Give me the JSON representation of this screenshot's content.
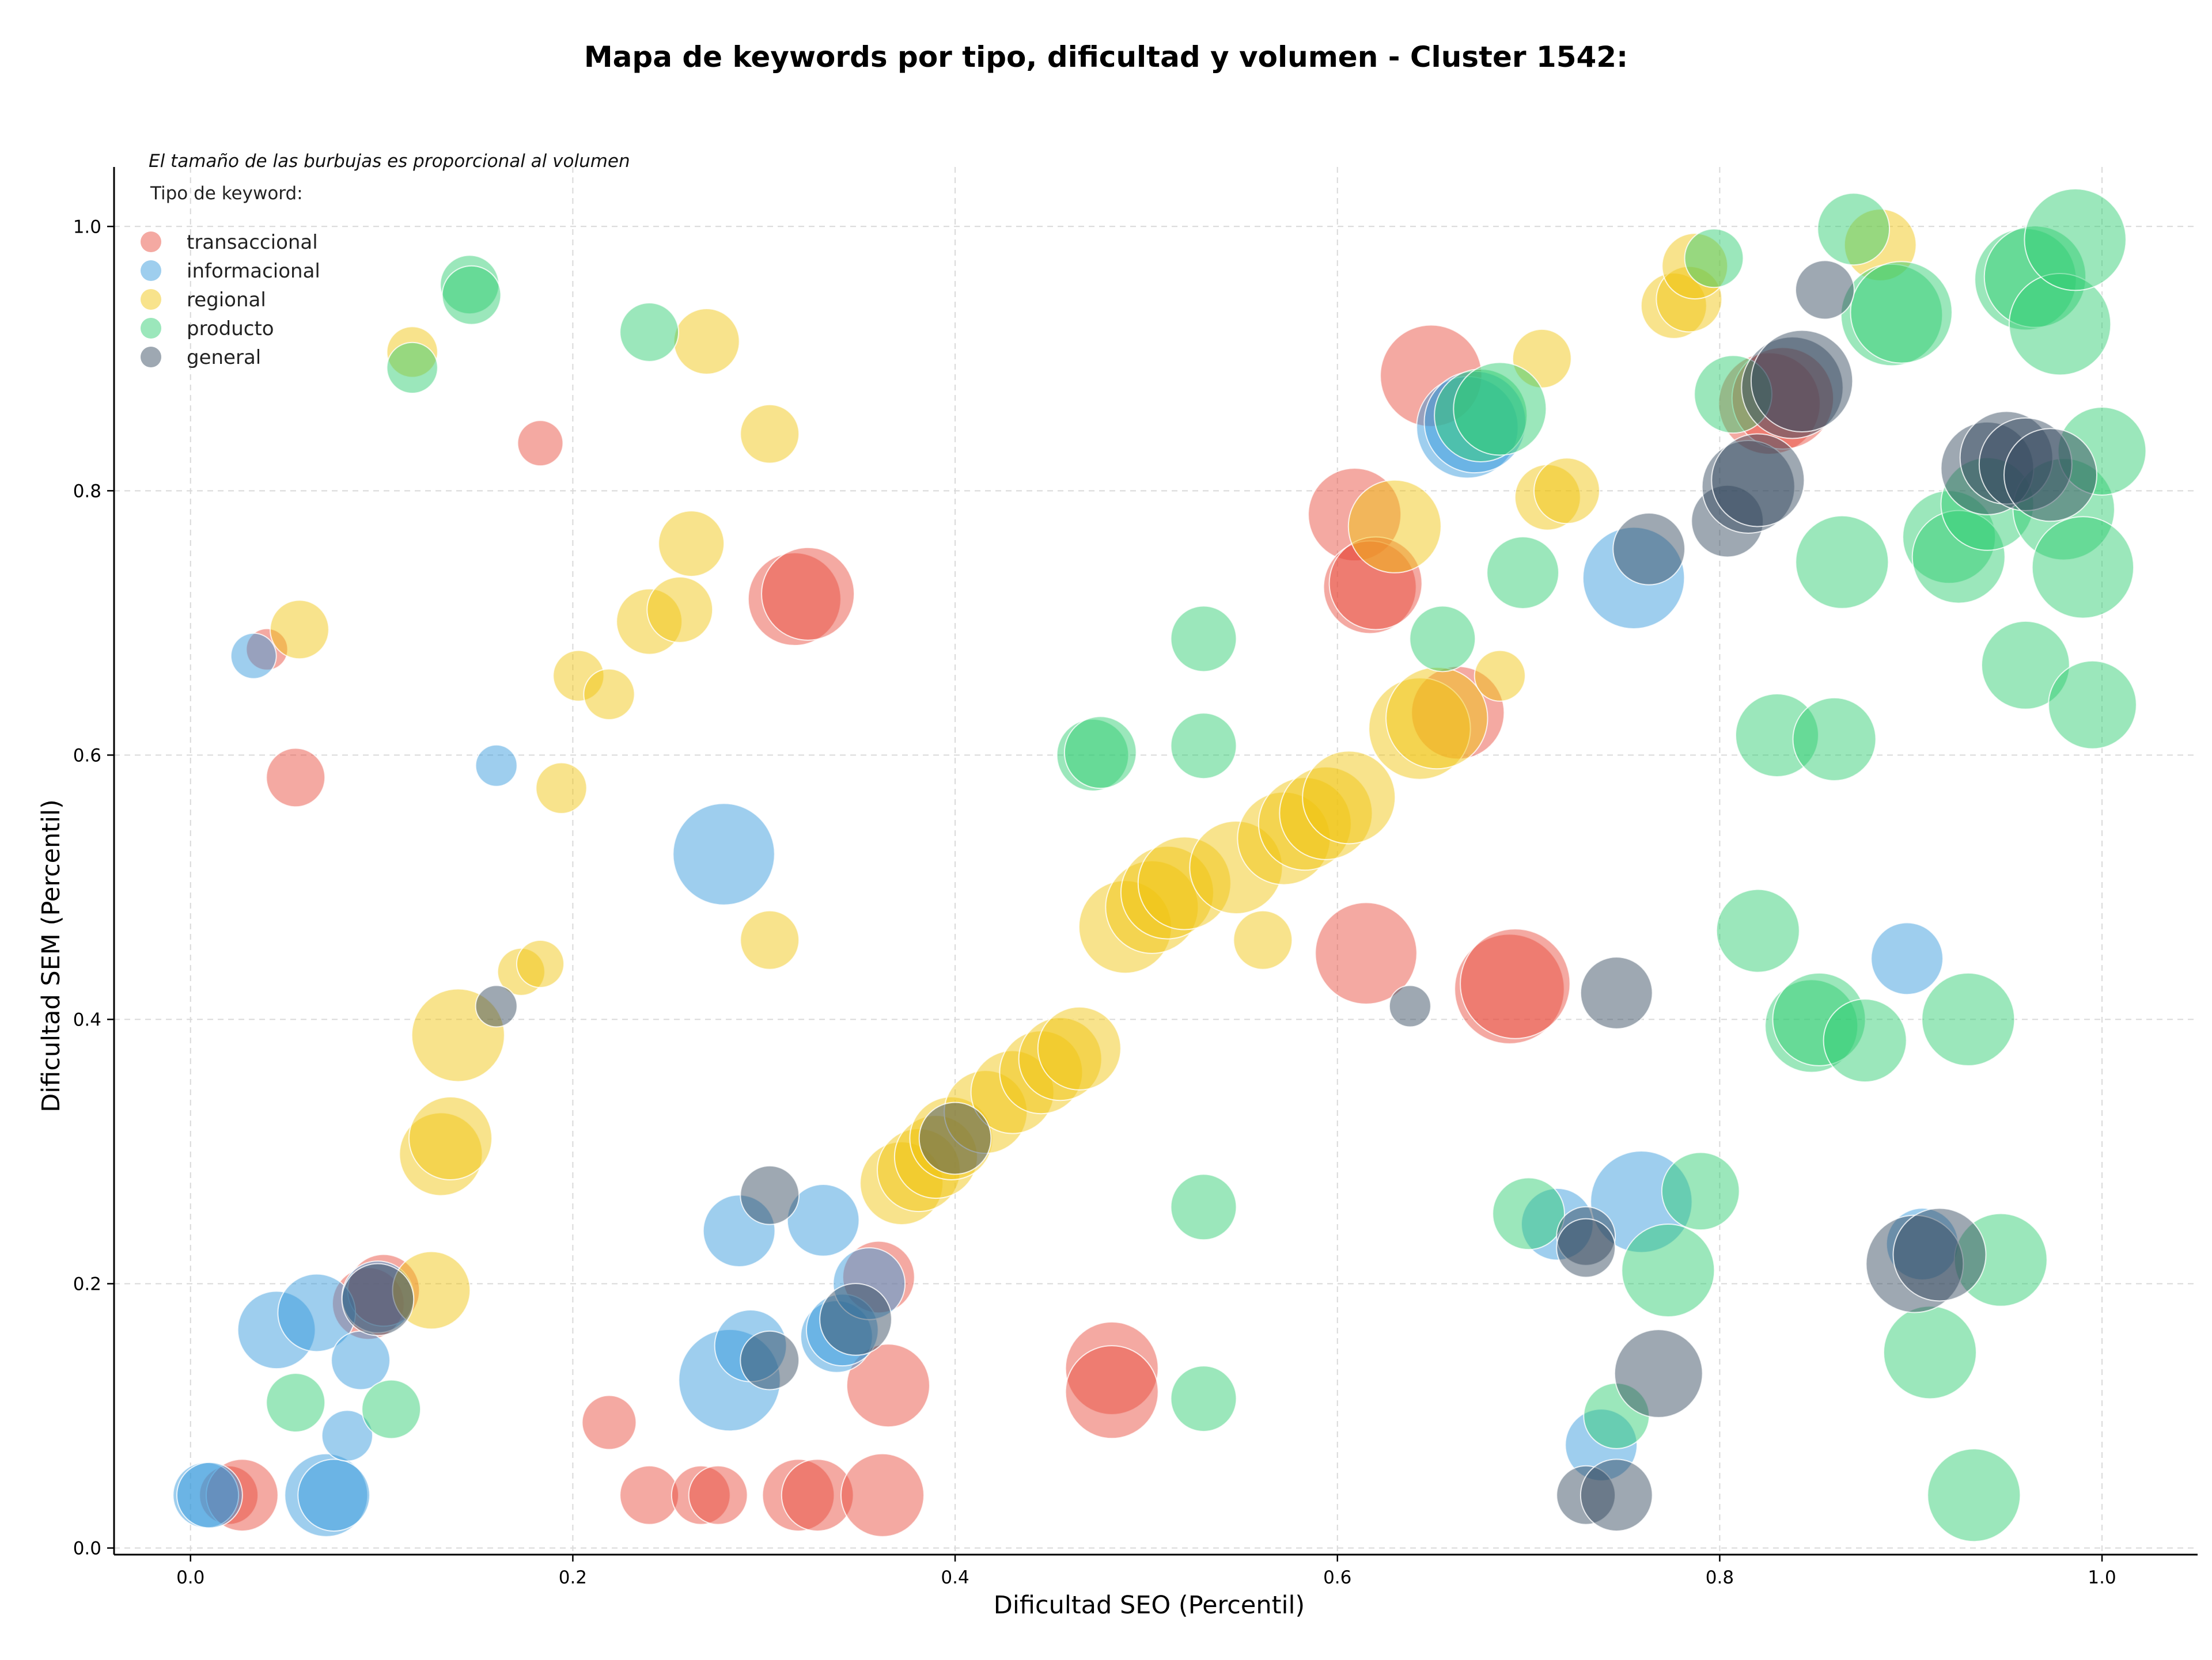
{
  "chart_data": {
    "type": "scatter",
    "title": "Mapa de keywords por tipo, dificultad y volumen - Cluster 1542:",
    "subtitle": "El tamaño de las burbujas es proporcional al volumen",
    "xlabel": "Dificultad SEO (Percentil)",
    "ylabel": "Dificultad SEM (Percentil)",
    "xlim": [
      -0.04,
      1.05
    ],
    "ylim": [
      -0.005,
      1.045
    ],
    "x_ticks": [
      0.0,
      0.2,
      0.4,
      0.6,
      0.8,
      1.0
    ],
    "x_tick_labels": [
      "0.0",
      "0.2",
      "0.4",
      "0.6",
      "0.8",
      "1.0"
    ],
    "y_ticks": [
      0.0,
      0.2,
      0.4,
      0.6,
      0.8,
      1.0
    ],
    "y_tick_labels": [
      "0.0",
      "0.2",
      "0.4",
      "0.6",
      "0.8",
      "1.0"
    ],
    "grid": true,
    "legend_title": "Tipo de keyword:",
    "legend_position": "top-left",
    "series": [
      {
        "name": "transaccional",
        "color": "#e74c3c",
        "points": [
          {
            "x": 0.04,
            "y": 0.68,
            "size": 1
          },
          {
            "x": 0.055,
            "y": 0.583,
            "size": 2
          },
          {
            "x": 0.183,
            "y": 0.836,
            "size": 1.2
          },
          {
            "x": 0.02,
            "y": 0.04,
            "size": 2
          },
          {
            "x": 0.027,
            "y": 0.04,
            "size": 3
          },
          {
            "x": 0.093,
            "y": 0.185,
            "size": 3
          },
          {
            "x": 0.101,
            "y": 0.195,
            "size": 3
          },
          {
            "x": 0.219,
            "y": 0.095,
            "size": 1.7
          },
          {
            "x": 0.24,
            "y": 0.04,
            "size": 2
          },
          {
            "x": 0.267,
            "y": 0.04,
            "size": 2
          },
          {
            "x": 0.276,
            "y": 0.04,
            "size": 2
          },
          {
            "x": 0.316,
            "y": 0.718,
            "size": 5
          },
          {
            "x": 0.323,
            "y": 0.722,
            "size": 5
          },
          {
            "x": 0.318,
            "y": 0.04,
            "size": 3
          },
          {
            "x": 0.328,
            "y": 0.04,
            "size": 3
          },
          {
            "x": 0.36,
            "y": 0.205,
            "size": 3
          },
          {
            "x": 0.362,
            "y": 0.04,
            "size": 4
          },
          {
            "x": 0.365,
            "y": 0.123,
            "size": 4
          },
          {
            "x": 0.482,
            "y": 0.136,
            "size": 5
          },
          {
            "x": 0.482,
            "y": 0.118,
            "size": 5
          },
          {
            "x": 0.609,
            "y": 0.782,
            "size": 5
          },
          {
            "x": 0.617,
            "y": 0.727,
            "size": 5
          },
          {
            "x": 0.62,
            "y": 0.73,
            "size": 5
          },
          {
            "x": 0.615,
            "y": 0.45,
            "size": 6
          },
          {
            "x": 0.649,
            "y": 0.887,
            "size": 6
          },
          {
            "x": 0.663,
            "y": 0.632,
            "size": 5
          },
          {
            "x": 0.69,
            "y": 0.423,
            "size": 7
          },
          {
            "x": 0.693,
            "y": 0.427,
            "size": 7
          },
          {
            "x": 0.826,
            "y": 0.866,
            "size": 6
          },
          {
            "x": 0.833,
            "y": 0.87,
            "size": 6
          }
        ]
      },
      {
        "name": "informacional",
        "color": "#3498db",
        "points": [
          {
            "x": 0.033,
            "y": 0.675,
            "size": 1.2
          },
          {
            "x": 0.16,
            "y": 0.592,
            "size": 1
          },
          {
            "x": 0.008,
            "y": 0.04,
            "size": 2.5
          },
          {
            "x": 0.01,
            "y": 0.04,
            "size": 2.5
          },
          {
            "x": 0.045,
            "y": 0.165,
            "size": 3.5
          },
          {
            "x": 0.066,
            "y": 0.178,
            "size": 3.5
          },
          {
            "x": 0.071,
            "y": 0.04,
            "size": 4
          },
          {
            "x": 0.075,
            "y": 0.04,
            "size": 3
          },
          {
            "x": 0.082,
            "y": 0.085,
            "size": 1.5
          },
          {
            "x": 0.089,
            "y": 0.142,
            "size": 2
          },
          {
            "x": 0.098,
            "y": 0.19,
            "size": 3
          },
          {
            "x": 0.279,
            "y": 0.525,
            "size": 6
          },
          {
            "x": 0.282,
            "y": 0.127,
            "size": 6
          },
          {
            "x": 0.287,
            "y": 0.24,
            "size": 3
          },
          {
            "x": 0.293,
            "y": 0.153,
            "size": 3
          },
          {
            "x": 0.331,
            "y": 0.248,
            "size": 3
          },
          {
            "x": 0.338,
            "y": 0.16,
            "size": 3
          },
          {
            "x": 0.341,
            "y": 0.165,
            "size": 3
          },
          {
            "x": 0.355,
            "y": 0.2,
            "size": 3
          },
          {
            "x": 0.668,
            "y": 0.848,
            "size": 6
          },
          {
            "x": 0.672,
            "y": 0.852,
            "size": 6
          },
          {
            "x": 0.715,
            "y": 0.245,
            "size": 3
          },
          {
            "x": 0.738,
            "y": 0.078,
            "size": 3
          },
          {
            "x": 0.755,
            "y": 0.734,
            "size": 6
          },
          {
            "x": 0.759,
            "y": 0.262,
            "size": 6
          },
          {
            "x": 0.898,
            "y": 0.446,
            "size": 3
          },
          {
            "x": 0.906,
            "y": 0.23,
            "size": 3
          }
        ]
      },
      {
        "name": "regional",
        "color": "#f1c40f",
        "points": [
          {
            "x": 0.057,
            "y": 0.695,
            "size": 2
          },
          {
            "x": 0.116,
            "y": 0.905,
            "size": 1.5
          },
          {
            "x": 0.126,
            "y": 0.195,
            "size": 3.5
          },
          {
            "x": 0.131,
            "y": 0.298,
            "size": 4
          },
          {
            "x": 0.136,
            "y": 0.31,
            "size": 4
          },
          {
            "x": 0.14,
            "y": 0.388,
            "size": 5
          },
          {
            "x": 0.173,
            "y": 0.436,
            "size": 1.3
          },
          {
            "x": 0.183,
            "y": 0.442,
            "size": 1.3
          },
          {
            "x": 0.194,
            "y": 0.575,
            "size": 1.5
          },
          {
            "x": 0.203,
            "y": 0.66,
            "size": 1.5
          },
          {
            "x": 0.219,
            "y": 0.646,
            "size": 1.5
          },
          {
            "x": 0.24,
            "y": 0.701,
            "size": 2.5
          },
          {
            "x": 0.256,
            "y": 0.71,
            "size": 2.5
          },
          {
            "x": 0.262,
            "y": 0.76,
            "size": 2.5
          },
          {
            "x": 0.27,
            "y": 0.913,
            "size": 2.5
          },
          {
            "x": 0.303,
            "y": 0.843,
            "size": 2
          },
          {
            "x": 0.303,
            "y": 0.46,
            "size": 2
          },
          {
            "x": 0.372,
            "y": 0.276,
            "size": 4
          },
          {
            "x": 0.381,
            "y": 0.286,
            "size": 4
          },
          {
            "x": 0.39,
            "y": 0.296,
            "size": 4
          },
          {
            "x": 0.398,
            "y": 0.31,
            "size": 4
          },
          {
            "x": 0.416,
            "y": 0.33,
            "size": 4
          },
          {
            "x": 0.43,
            "y": 0.345,
            "size": 4
          },
          {
            "x": 0.445,
            "y": 0.36,
            "size": 4
          },
          {
            "x": 0.455,
            "y": 0.37,
            "size": 4
          },
          {
            "x": 0.465,
            "y": 0.378,
            "size": 4
          },
          {
            "x": 0.489,
            "y": 0.47,
            "size": 5
          },
          {
            "x": 0.503,
            "y": 0.485,
            "size": 5
          },
          {
            "x": 0.511,
            "y": 0.496,
            "size": 5
          },
          {
            "x": 0.52,
            "y": 0.503,
            "size": 5
          },
          {
            "x": 0.547,
            "y": 0.515,
            "size": 5
          },
          {
            "x": 0.561,
            "y": 0.46,
            "size": 2
          },
          {
            "x": 0.572,
            "y": 0.537,
            "size": 5
          },
          {
            "x": 0.583,
            "y": 0.548,
            "size": 5
          },
          {
            "x": 0.594,
            "y": 0.556,
            "size": 5
          },
          {
            "x": 0.606,
            "y": 0.568,
            "size": 5
          },
          {
            "x": 0.63,
            "y": 0.773,
            "size": 5
          },
          {
            "x": 0.643,
            "y": 0.62,
            "size": 6
          },
          {
            "x": 0.652,
            "y": 0.628,
            "size": 6
          },
          {
            "x": 0.685,
            "y": 0.66,
            "size": 1.5
          },
          {
            "x": 0.707,
            "y": 0.9,
            "size": 2
          },
          {
            "x": 0.71,
            "y": 0.795,
            "size": 2.5
          },
          {
            "x": 0.72,
            "y": 0.8,
            "size": 2.5
          },
          {
            "x": 0.776,
            "y": 0.94,
            "size": 2.5
          },
          {
            "x": 0.784,
            "y": 0.945,
            "size": 2.5
          },
          {
            "x": 0.787,
            "y": 0.97,
            "size": 2.5
          },
          {
            "x": 0.884,
            "y": 0.986,
            "size": 3
          }
        ]
      },
      {
        "name": "producto",
        "color": "#2ecc71",
        "points": [
          {
            "x": 0.055,
            "y": 0.11,
            "size": 2
          },
          {
            "x": 0.105,
            "y": 0.105,
            "size": 2
          },
          {
            "x": 0.116,
            "y": 0.893,
            "size": 1.5
          },
          {
            "x": 0.146,
            "y": 0.956,
            "size": 2
          },
          {
            "x": 0.147,
            "y": 0.948,
            "size": 2
          },
          {
            "x": 0.24,
            "y": 0.92,
            "size": 2
          },
          {
            "x": 0.472,
            "y": 0.6,
            "size": 3
          },
          {
            "x": 0.476,
            "y": 0.602,
            "size": 3
          },
          {
            "x": 0.53,
            "y": 0.688,
            "size": 2.5
          },
          {
            "x": 0.53,
            "y": 0.607,
            "size": 2.5
          },
          {
            "x": 0.53,
            "y": 0.258,
            "size": 2.5
          },
          {
            "x": 0.53,
            "y": 0.113,
            "size": 2.5
          },
          {
            "x": 0.655,
            "y": 0.688,
            "size": 2.5
          },
          {
            "x": 0.675,
            "y": 0.857,
            "size": 5
          },
          {
            "x": 0.685,
            "y": 0.862,
            "size": 5
          },
          {
            "x": 0.697,
            "y": 0.738,
            "size": 3
          },
          {
            "x": 0.7,
            "y": 0.253,
            "size": 3
          },
          {
            "x": 0.746,
            "y": 0.1,
            "size": 2.5
          },
          {
            "x": 0.773,
            "y": 0.21,
            "size": 5
          },
          {
            "x": 0.79,
            "y": 0.27,
            "size": 3.5
          },
          {
            "x": 0.797,
            "y": 0.976,
            "size": 2
          },
          {
            "x": 0.807,
            "y": 0.873,
            "size": 3.5
          },
          {
            "x": 0.82,
            "y": 0.467,
            "size": 4
          },
          {
            "x": 0.83,
            "y": 0.615,
            "size": 4
          },
          {
            "x": 0.848,
            "y": 0.395,
            "size": 5
          },
          {
            "x": 0.852,
            "y": 0.4,
            "size": 5
          },
          {
            "x": 0.86,
            "y": 0.612,
            "size": 4
          },
          {
            "x": 0.864,
            "y": 0.746,
            "size": 5
          },
          {
            "x": 0.87,
            "y": 0.998,
            "size": 3
          },
          {
            "x": 0.876,
            "y": 0.384,
            "size": 4
          },
          {
            "x": 0.89,
            "y": 0.933,
            "size": 6
          },
          {
            "x": 0.895,
            "y": 0.935,
            "size": 6
          },
          {
            "x": 0.91,
            "y": 0.148,
            "size": 5
          },
          {
            "x": 0.92,
            "y": 0.765,
            "size": 5
          },
          {
            "x": 0.925,
            "y": 0.75,
            "size": 5
          },
          {
            "x": 0.93,
            "y": 0.4,
            "size": 5
          },
          {
            "x": 0.933,
            "y": 0.04,
            "size": 5
          },
          {
            "x": 0.94,
            "y": 0.79,
            "size": 5
          },
          {
            "x": 0.947,
            "y": 0.218,
            "size": 5
          },
          {
            "x": 0.96,
            "y": 0.96,
            "size": 6
          },
          {
            "x": 0.965,
            "y": 0.962,
            "size": 6
          },
          {
            "x": 0.96,
            "y": 0.668,
            "size": 4.5
          },
          {
            "x": 0.978,
            "y": 0.926,
            "size": 6
          },
          {
            "x": 0.986,
            "y": 0.99,
            "size": 6
          },
          {
            "x": 0.98,
            "y": 0.786,
            "size": 6
          },
          {
            "x": 0.99,
            "y": 0.742,
            "size": 6
          },
          {
            "x": 0.995,
            "y": 0.638,
            "size": 4.5
          },
          {
            "x": 1.0,
            "y": 0.83,
            "size": 4.5
          }
        ]
      },
      {
        "name": "general",
        "color": "#34495e",
        "points": [
          {
            "x": 0.16,
            "y": 0.41,
            "size": 1
          },
          {
            "x": 0.098,
            "y": 0.188,
            "size": 3
          },
          {
            "x": 0.303,
            "y": 0.267,
            "size": 2
          },
          {
            "x": 0.303,
            "y": 0.142,
            "size": 2
          },
          {
            "x": 0.348,
            "y": 0.173,
            "size": 3
          },
          {
            "x": 0.4,
            "y": 0.31,
            "size": 3
          },
          {
            "x": 0.638,
            "y": 0.41,
            "size": 1
          },
          {
            "x": 0.73,
            "y": 0.04,
            "size": 2
          },
          {
            "x": 0.73,
            "y": 0.236,
            "size": 2
          },
          {
            "x": 0.73,
            "y": 0.227,
            "size": 2
          },
          {
            "x": 0.746,
            "y": 0.04,
            "size": 3
          },
          {
            "x": 0.746,
            "y": 0.42,
            "size": 3
          },
          {
            "x": 0.763,
            "y": 0.756,
            "size": 3
          },
          {
            "x": 0.768,
            "y": 0.132,
            "size": 4.5
          },
          {
            "x": 0.804,
            "y": 0.777,
            "size": 3
          },
          {
            "x": 0.815,
            "y": 0.803,
            "size": 5
          },
          {
            "x": 0.82,
            "y": 0.808,
            "size": 5
          },
          {
            "x": 0.838,
            "y": 0.878,
            "size": 6
          },
          {
            "x": 0.843,
            "y": 0.883,
            "size": 6
          },
          {
            "x": 0.855,
            "y": 0.952,
            "size": 2
          },
          {
            "x": 0.902,
            "y": 0.215,
            "size": 5.5
          },
          {
            "x": 0.915,
            "y": 0.222,
            "size": 5
          },
          {
            "x": 0.94,
            "y": 0.817,
            "size": 5
          },
          {
            "x": 0.95,
            "y": 0.825,
            "size": 5
          },
          {
            "x": 0.96,
            "y": 0.82,
            "size": 5
          },
          {
            "x": 0.973,
            "y": 0.812,
            "size": 5
          }
        ]
      }
    ]
  }
}
